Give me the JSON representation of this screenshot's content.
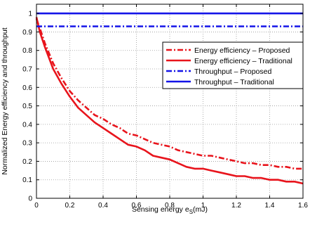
{
  "chart_data": {
    "type": "line",
    "xlabel": "Sensing energy e",
    "xlabel_sub": "S",
    "xlabel_unit": "(mJ)",
    "ylabel": "Normalized Energy efficiency and throughput",
    "xlim": [
      0,
      1.6
    ],
    "ylim": [
      0,
      1.05
    ],
    "xticks": [
      "0",
      "0.2",
      "0.4",
      "0.6",
      "0.8",
      "1",
      "1.2",
      "1.4",
      "1.6"
    ],
    "yticks": [
      "0",
      "0.1",
      "0.2",
      "0.3",
      "0.4",
      "0.5",
      "0.6",
      "0.7",
      "0.8",
      "0.9",
      "1"
    ],
    "grid": true,
    "legend_position": "top-right",
    "series": [
      {
        "name": "Energy efficiency – Proposed",
        "color": "#e8141c",
        "style": "dashdot",
        "x": [
          0,
          0.02,
          0.05,
          0.1,
          0.15,
          0.2,
          0.25,
          0.3,
          0.35,
          0.4,
          0.45,
          0.5,
          0.55,
          0.6,
          0.65,
          0.7,
          0.75,
          0.8,
          0.85,
          0.9,
          0.95,
          1.0,
          1.05,
          1.1,
          1.15,
          1.2,
          1.25,
          1.3,
          1.35,
          1.4,
          1.45,
          1.5,
          1.55,
          1.6
        ],
        "y": [
          0.97,
          0.92,
          0.84,
          0.73,
          0.65,
          0.58,
          0.53,
          0.49,
          0.45,
          0.43,
          0.4,
          0.38,
          0.35,
          0.34,
          0.32,
          0.3,
          0.29,
          0.28,
          0.26,
          0.25,
          0.24,
          0.23,
          0.23,
          0.22,
          0.21,
          0.2,
          0.19,
          0.19,
          0.18,
          0.18,
          0.17,
          0.17,
          0.16,
          0.16
        ]
      },
      {
        "name": "Energy efficiency – Traditional",
        "color": "#e8141c",
        "style": "solid",
        "x": [
          0,
          0.02,
          0.05,
          0.1,
          0.15,
          0.2,
          0.25,
          0.3,
          0.35,
          0.4,
          0.45,
          0.5,
          0.55,
          0.6,
          0.65,
          0.7,
          0.75,
          0.8,
          0.85,
          0.9,
          0.95,
          1.0,
          1.05,
          1.1,
          1.15,
          1.2,
          1.25,
          1.3,
          1.35,
          1.4,
          1.45,
          1.5,
          1.55,
          1.6
        ],
        "y": [
          0.98,
          0.9,
          0.82,
          0.7,
          0.62,
          0.55,
          0.49,
          0.45,
          0.41,
          0.38,
          0.35,
          0.32,
          0.29,
          0.28,
          0.26,
          0.23,
          0.22,
          0.21,
          0.19,
          0.17,
          0.16,
          0.16,
          0.15,
          0.14,
          0.13,
          0.12,
          0.12,
          0.11,
          0.11,
          0.1,
          0.1,
          0.09,
          0.09,
          0.08
        ]
      },
      {
        "name": "Throughput – Proposed",
        "color": "#1414e8",
        "style": "dashdot",
        "x": [
          0,
          1.6
        ],
        "y": [
          0.93,
          0.93
        ]
      },
      {
        "name": "Throughput – Traditional",
        "color": "#1414e8",
        "style": "solid",
        "x": [
          0,
          1.6
        ],
        "y": [
          1.0,
          1.0
        ]
      }
    ]
  }
}
